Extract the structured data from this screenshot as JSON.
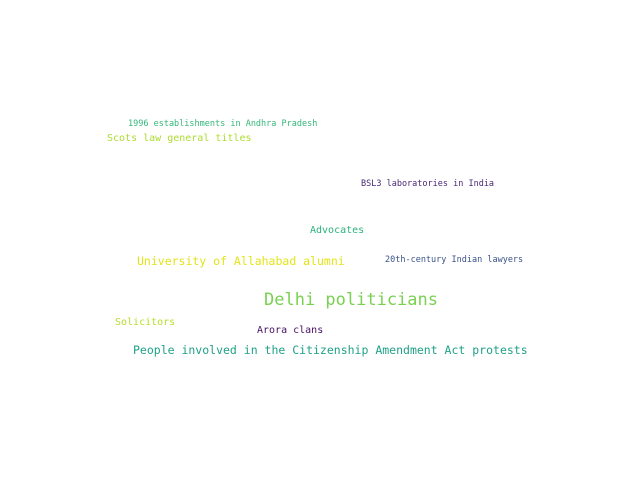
{
  "words": [
    {
      "text": "1996 establishments in Andhra Pradesh",
      "color": "#35b779"
    },
    {
      "text": "Scots law general titles",
      "color": "#addc30"
    },
    {
      "text": "BSL3 laboratories in India",
      "color": "#482878"
    },
    {
      "text": "Advocates",
      "color": "#2cb17e"
    },
    {
      "text": "University of Allahabad alumni",
      "color": "#e3e418"
    },
    {
      "text": "20th-century Indian lawyers",
      "color": "#3b528b"
    },
    {
      "text": "Delhi politicians",
      "color": "#7ad151"
    },
    {
      "text": "Solicitors",
      "color": "#b5de2b"
    },
    {
      "text": "Arora clans",
      "color": "#471063"
    },
    {
      "text": "People involved in the Citizenship Amendment Act protests",
      "color": "#1fa187"
    }
  ]
}
